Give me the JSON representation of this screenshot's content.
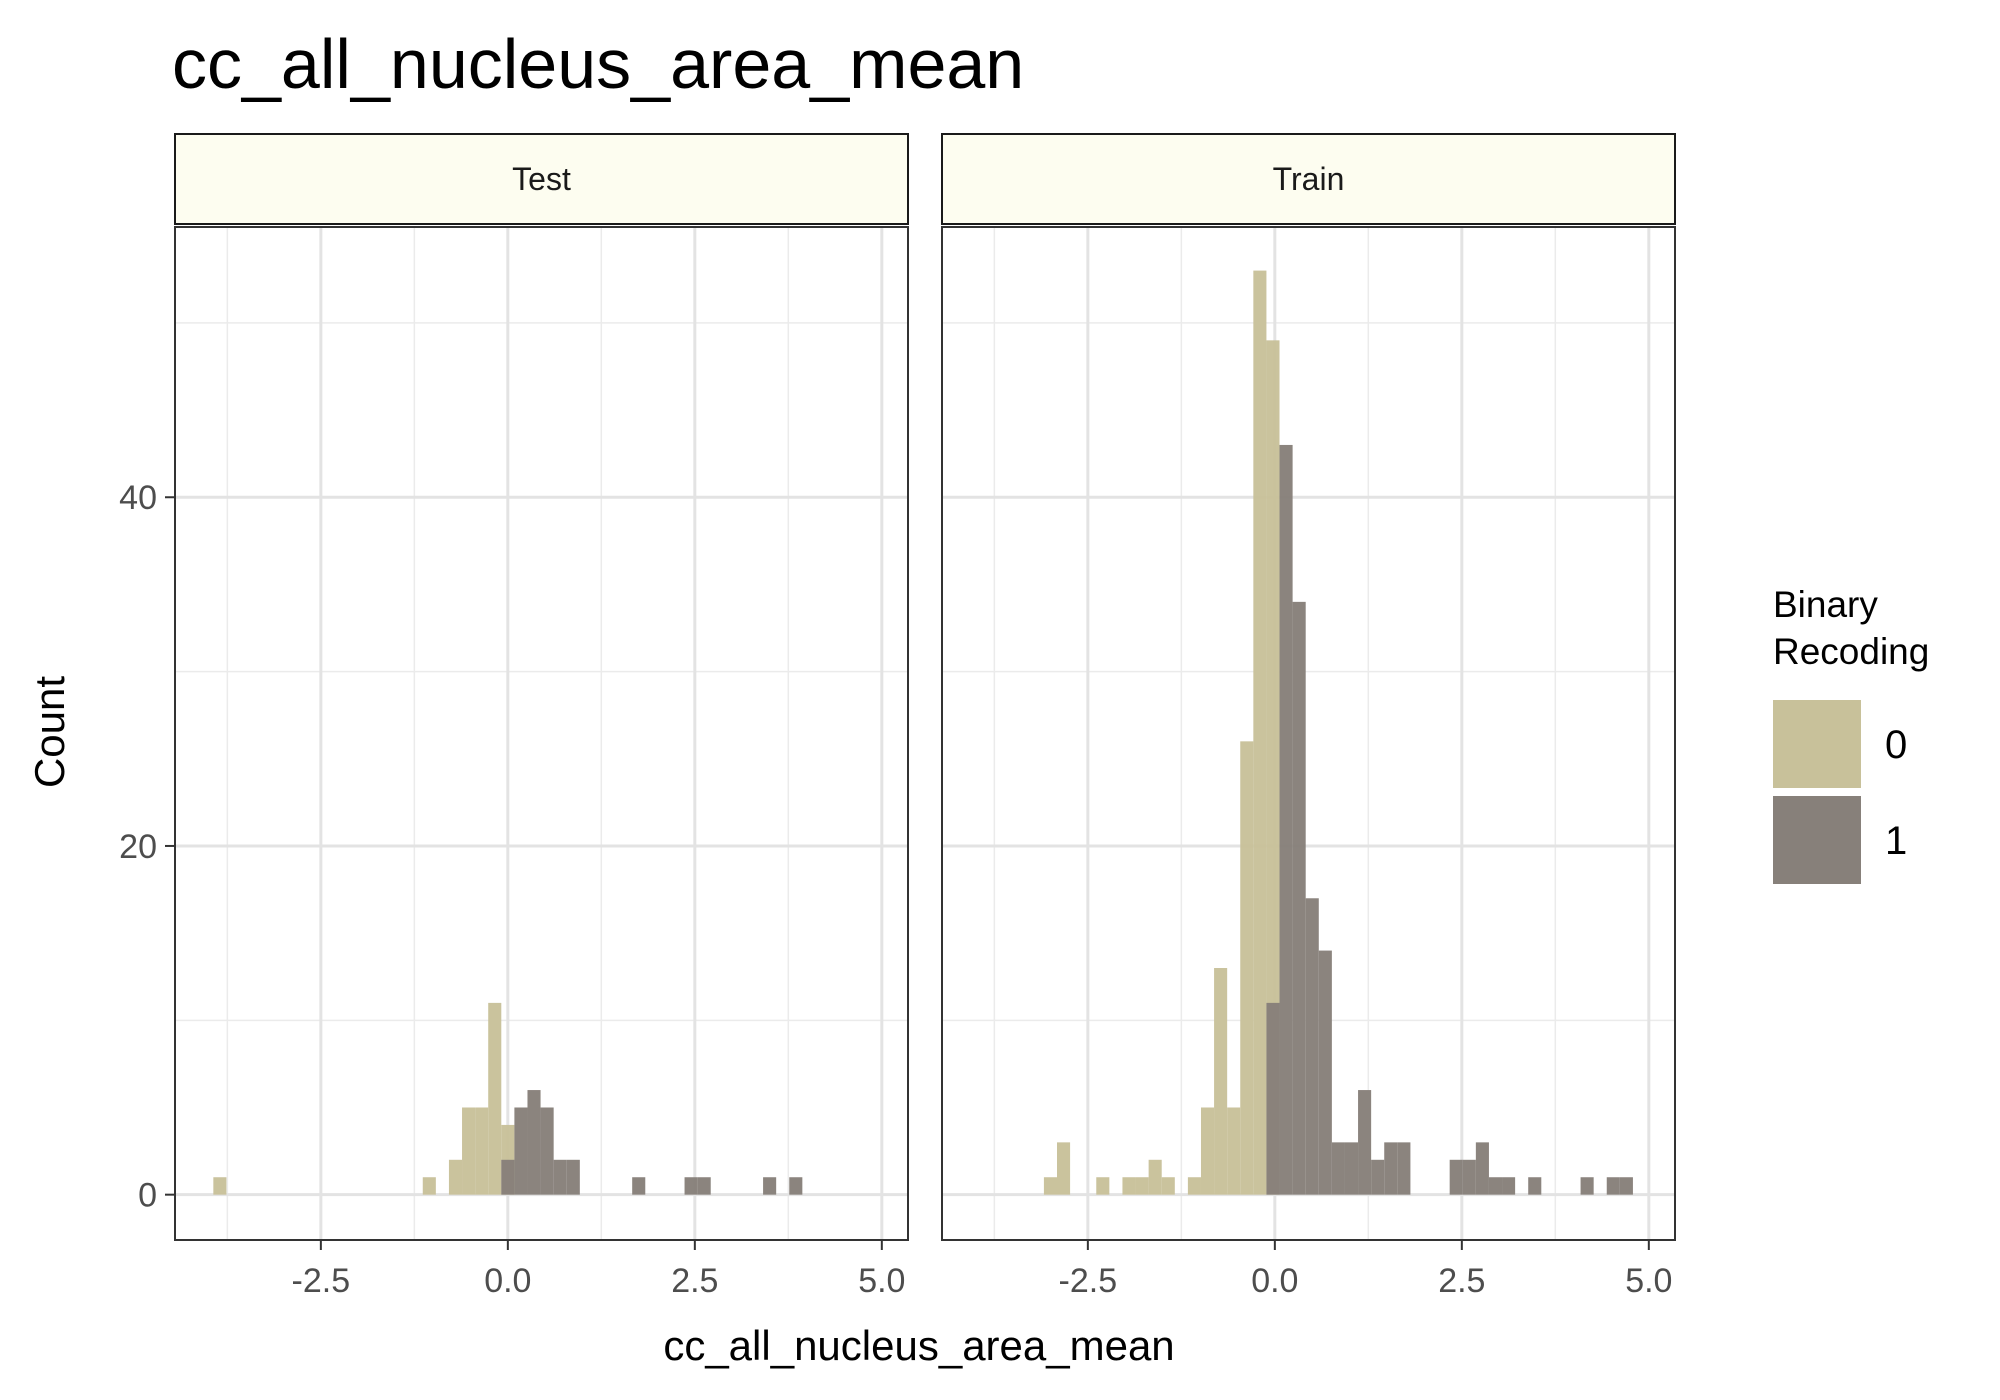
{
  "chart_data": {
    "type": "bar",
    "title": "cc_all_nucleus_area_mean",
    "xlabel": "cc_all_nucleus_area_mean",
    "ylabel": "Count",
    "xlim": [
      -4.45,
      5.35
    ],
    "ylim": [
      -2.6,
      55.5
    ],
    "x_ticks": [
      -2.5,
      0.0,
      2.5,
      5.0
    ],
    "x_tick_labels": [
      "-2.5",
      "0.0",
      "2.5",
      "5.0"
    ],
    "y_ticks": [
      0,
      20,
      40
    ],
    "y_tick_labels": [
      "0",
      "20",
      "40"
    ],
    "bin_width": 0.175,
    "grid": true,
    "legend": {
      "title_lines": [
        "Binary",
        "Recoding"
      ],
      "placement": "right",
      "entries": [
        {
          "label": "0",
          "color": "#c8c19a"
        },
        {
          "label": "1",
          "color": "#87807a"
        }
      ]
    },
    "panels": [
      {
        "name": "Test",
        "series": [
          {
            "name": "0",
            "color": "#c8c19a",
            "values": [
              [
                -3.85,
                1
              ],
              [
                -1.05,
                1
              ],
              [
                -0.7,
                2
              ],
              [
                -0.525,
                5
              ],
              [
                -0.35,
                5
              ],
              [
                -0.175,
                11
              ],
              [
                0.0,
                4
              ]
            ]
          },
          {
            "name": "1",
            "color": "#87807a",
            "values": [
              [
                0.0,
                2
              ],
              [
                0.175,
                5
              ],
              [
                0.35,
                6
              ],
              [
                0.525,
                5
              ],
              [
                0.7,
                2
              ],
              [
                0.875,
                2
              ],
              [
                1.75,
                1
              ],
              [
                2.45,
                1
              ],
              [
                2.625,
                1
              ],
              [
                3.5,
                1
              ],
              [
                3.85,
                1
              ]
            ]
          }
        ]
      },
      {
        "name": "Train",
        "series": [
          {
            "name": "0",
            "color": "#c8c19a",
            "values": [
              [
                -3.0,
                1
              ],
              [
                -2.825,
                3
              ],
              [
                -2.3,
                1
              ],
              [
                -1.95,
                1
              ],
              [
                -1.775,
                1
              ],
              [
                -1.6,
                2
              ],
              [
                -1.425,
                1
              ],
              [
                -1.075,
                1
              ],
              [
                -0.9,
                5
              ],
              [
                -0.725,
                13
              ],
              [
                -0.55,
                5
              ],
              [
                -0.375,
                26
              ],
              [
                -0.2,
                53
              ],
              [
                -0.025,
                49
              ]
            ]
          },
          {
            "name": "1",
            "color": "#87807a",
            "values": [
              [
                -0.025,
                11
              ],
              [
                0.15,
                43
              ],
              [
                0.325,
                34
              ],
              [
                0.5,
                17
              ],
              [
                0.675,
                14
              ],
              [
                0.85,
                3
              ],
              [
                1.025,
                3
              ],
              [
                1.2,
                6
              ],
              [
                1.375,
                2
              ],
              [
                1.55,
                3
              ],
              [
                1.725,
                3
              ],
              [
                2.425,
                2
              ],
              [
                2.6,
                2
              ],
              [
                2.775,
                3
              ],
              [
                2.95,
                1
              ],
              [
                3.125,
                1
              ],
              [
                3.475,
                1
              ],
              [
                4.175,
                1
              ],
              [
                4.525,
                1
              ],
              [
                4.7,
                1
              ]
            ]
          }
        ]
      }
    ]
  }
}
